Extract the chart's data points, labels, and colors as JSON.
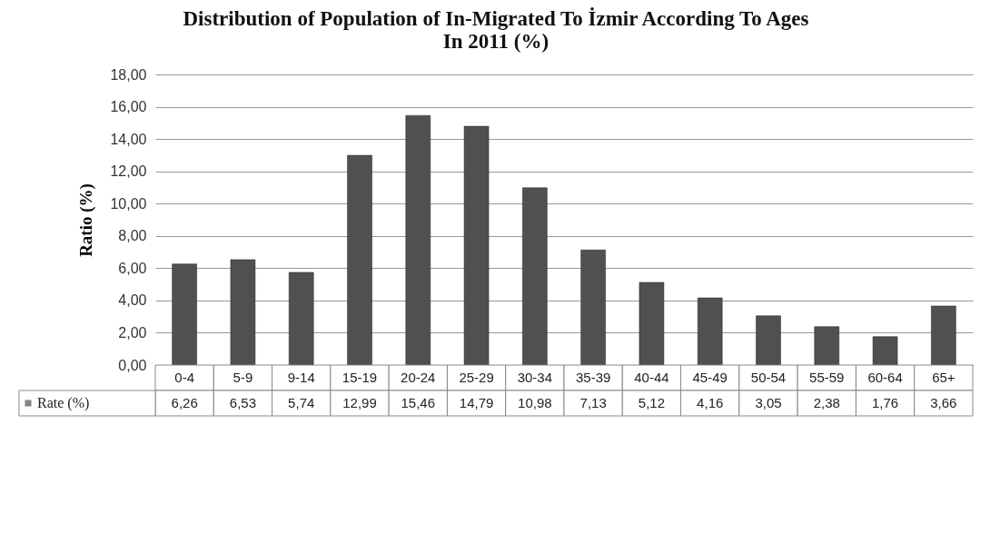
{
  "chart_data": {
    "type": "bar",
    "title": "Distribution of Population of In-Migrated To İzmir According To Ages In 2011 (%)",
    "ylabel": "Ratio (%)",
    "categories": [
      "0-4",
      "5-9",
      "9-14",
      "15-19",
      "20-24",
      "25-29",
      "30-34",
      "35-39",
      "40-44",
      "45-49",
      "50-54",
      "55-59",
      "60-64",
      "65+"
    ],
    "series": [
      {
        "name": "Rate (%)",
        "color": "#505050",
        "values": [
          6.26,
          6.53,
          5.74,
          12.99,
          15.46,
          14.79,
          10.98,
          7.13,
          5.12,
          4.16,
          3.05,
          2.38,
          1.76,
          3.66
        ],
        "value_labels": [
          "6,26",
          "6,53",
          "5,74",
          "12,99",
          "15,46",
          "14,79",
          "10,98",
          "7,13",
          "5,12",
          "4,16",
          "3,05",
          "2,38",
          "1,76",
          "3,66"
        ]
      }
    ],
    "ylim": [
      0,
      18
    ],
    "yticks": [
      {
        "value": 0,
        "label": "0,00"
      },
      {
        "value": 2,
        "label": "2,00"
      },
      {
        "value": 4,
        "label": "4,00"
      },
      {
        "value": 6,
        "label": "6,00"
      },
      {
        "value": 8,
        "label": "8,00"
      },
      {
        "value": 10,
        "label": "10,00"
      },
      {
        "value": 12,
        "label": "12,00"
      },
      {
        "value": 14,
        "label": "14,00"
      },
      {
        "value": 16,
        "label": "16,00"
      },
      {
        "value": 18,
        "label": "18,00"
      }
    ],
    "grid": "y"
  }
}
